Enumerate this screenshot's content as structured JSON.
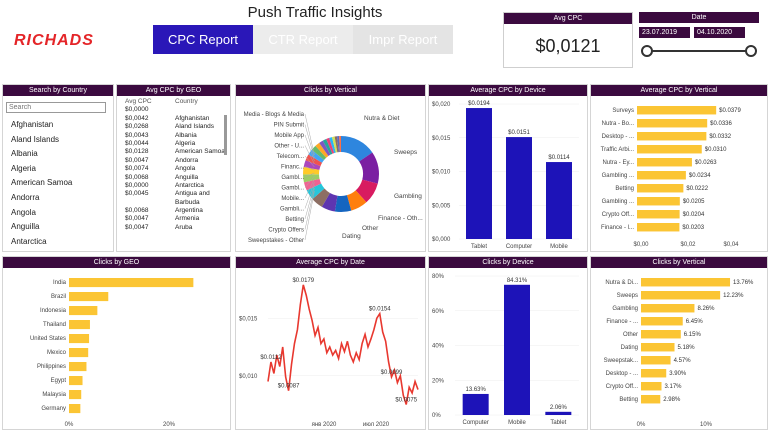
{
  "header": {
    "logo_text": "RICHADS",
    "title": "Push Traffic Insights",
    "tabs": [
      {
        "label": "CPC Report"
      },
      {
        "label": "CTR Report"
      },
      {
        "label": "Impr Report"
      }
    ]
  },
  "avg_cpc_card": {
    "title": "Avg CPC",
    "value": "$0,0121"
  },
  "date_card": {
    "title": "Date",
    "start": "23.07.2019",
    "end": "04.10.2020"
  },
  "country_slicer": {
    "title": "Search by Country",
    "placeholder": "Search",
    "items": [
      "Afghanistan",
      "Aland Islands",
      "Albania",
      "Algeria",
      "American Samoa",
      "Andorra",
      "Angola",
      "Anguilla",
      "Antarctica"
    ]
  },
  "geo_table": {
    "title": "Avg CPC by GEO",
    "col1": "Avg CPC",
    "col2": "Country",
    "rows": [
      [
        "$0,0000",
        ""
      ],
      [
        "$0,0042",
        "Afghanistan"
      ],
      [
        "$0,0268",
        "Aland Islands"
      ],
      [
        "$0,0043",
        "Albania"
      ],
      [
        "$0,0044",
        "Algeria"
      ],
      [
        "$0,0128",
        "American Samoa"
      ],
      [
        "$0,0047",
        "Andorra"
      ],
      [
        "$0,0074",
        "Angola"
      ],
      [
        "$0,0068",
        "Anguilla"
      ],
      [
        "$0,0000",
        "Antarctica"
      ],
      [
        "$0,0045",
        "Antigua and"
      ],
      [
        "",
        "Barbuda"
      ],
      [
        "$0,0068",
        "Argentina"
      ],
      [
        "$0,0047",
        "Armenia"
      ],
      [
        "$0,0047",
        "Aruba"
      ]
    ]
  },
  "donut": {
    "title": "Clicks by Vertical",
    "labels_left": [
      "Media - Blogs & Media",
      "PIN Submit",
      "Mobile App",
      "Other - U...",
      "Telecom...",
      "Financ...",
      "Gambl...",
      "Gambl...",
      "Mobile...",
      "Gambli...",
      "Betting",
      "Crypto Offers",
      "Sweepstakes - Other"
    ],
    "labels_right": [
      "Nutra & Diet",
      "Sweeps",
      "Gambling",
      "Finance - Oth...",
      "Other",
      "Dating"
    ]
  },
  "device_cpc": {
    "title": "Average CPC by Device",
    "y_ticks": [
      "$0,020",
      "$0,015",
      "$0,010",
      "$0,005",
      "$0,000"
    ]
  },
  "vertical_cpc": {
    "title": "Average CPC by Vertical",
    "x_ticks": [
      "$0,00",
      "$0,02",
      "$0,04"
    ]
  },
  "geo_clicks": {
    "title": "Clicks by GEO",
    "x_ticks": [
      "0%",
      "20%"
    ]
  },
  "date_cpc": {
    "title": "Average CPC by Date",
    "y_ticks": [
      "$0,015",
      "$0,010"
    ],
    "x_ticks": [
      "янв 2020",
      "июл 2020"
    ],
    "annotations": [
      "$0.0179",
      "$0.0154",
      "$0.0112",
      "$0.0099",
      "$0.0087",
      "$0.0075"
    ]
  },
  "device_clicks": {
    "title": "Clicks by Device",
    "y_ticks": [
      "80%",
      "60%",
      "40%",
      "20%",
      "0%"
    ]
  },
  "vertical_clicks": {
    "title": "Clicks by Vertical",
    "x_ticks": [
      "0%",
      "10%"
    ]
  },
  "colors": {
    "bar_blue": "#1d13b8",
    "bar_yellow": "#fbc534",
    "header_bg": "#3b0a3f",
    "line_red": "#e8382f",
    "logo_red": "#e42528"
  },
  "chart_data": [
    {
      "type": "bar",
      "title": "Average CPC by Device",
      "categories": [
        "Tablet",
        "Computer",
        "Mobile"
      ],
      "values": [
        0.0194,
        0.0151,
        0.0114
      ],
      "labels": [
        "$0.0194",
        "$0.0151",
        "$0.0114"
      ],
      "ylim": [
        0,
        0.02
      ]
    },
    {
      "type": "bar",
      "orientation": "horizontal",
      "title": "Average CPC by Vertical",
      "categories": [
        "Surveys",
        "Nutra - Bo...",
        "Desktop - ...",
        "Traffic Arbi...",
        "Nutra - Ey...",
        "Gambling ...",
        "Betting",
        "Gambling ...",
        "Crypto Off...",
        "Finance - l..."
      ],
      "values": [
        0.0379,
        0.0336,
        0.0332,
        0.031,
        0.0263,
        0.0234,
        0.0222,
        0.0205,
        0.0204,
        0.0203
      ],
      "labels": [
        "$0.0379",
        "$0.0336",
        "$0.0332",
        "$0.0310",
        "$0.0263",
        "$0.0234",
        "$0.0222",
        "$0.0205",
        "$0.0204",
        "$0.0203"
      ],
      "xlim": [
        0,
        0.045
      ]
    },
    {
      "type": "bar",
      "orientation": "horizontal",
      "title": "Clicks by GEO",
      "categories": [
        "India",
        "Brazil",
        "Indonesia",
        "Thailand",
        "United States",
        "Mexico",
        "Philippines",
        "Egypt",
        "Malaysia",
        "Germany"
      ],
      "values": [
        28.5,
        9.0,
        6.5,
        4.8,
        4.6,
        4.4,
        4.0,
        3.1,
        2.8,
        2.6
      ],
      "xlim": [
        0,
        33
      ]
    },
    {
      "type": "line",
      "title": "Average CPC by Date",
      "x_range": [
        "2019-07",
        "2020-10"
      ],
      "ylim": [
        0.0065,
        0.0185
      ],
      "values": [
        0.0095,
        0.0112,
        0.0102,
        0.0118,
        0.0108,
        0.0125,
        0.0099,
        0.0087,
        0.011,
        0.0128,
        0.014,
        0.0162,
        0.0179,
        0.017,
        0.0158,
        0.0148,
        0.0135,
        0.0142,
        0.0128,
        0.0132,
        0.012,
        0.0125,
        0.0118,
        0.0122,
        0.0115,
        0.0128,
        0.0121,
        0.013,
        0.0118,
        0.0112,
        0.012,
        0.0114,
        0.0128,
        0.0136,
        0.0125,
        0.0132,
        0.014,
        0.015,
        0.0154,
        0.0138,
        0.013,
        0.0112,
        0.0099,
        0.0105,
        0.0094,
        0.01,
        0.0083,
        0.0075,
        0.009,
        0.0085,
        0.0095,
        0.0088
      ]
    },
    {
      "type": "bar",
      "title": "Clicks by Device",
      "categories": [
        "Computer",
        "Mobile",
        "Tablet"
      ],
      "values": [
        13.63,
        84.31,
        2.06
      ],
      "labels": [
        "13.63%",
        "84.31%",
        "2.06%"
      ],
      "ylim": [
        0,
        90
      ]
    },
    {
      "type": "bar",
      "orientation": "horizontal",
      "title": "Clicks by Vertical",
      "categories": [
        "Nutra & Di...",
        "Sweeps",
        "Gambling",
        "Finance - ...",
        "Other",
        "Dating",
        "Sweepstak...",
        "Desktop - ...",
        "Crypto Off...",
        "Betting"
      ],
      "values": [
        13.76,
        12.23,
        8.26,
        6.45,
        6.15,
        5.18,
        4.57,
        3.9,
        3.17,
        2.98
      ],
      "labels": [
        "13.76%",
        "12.23%",
        "8.26%",
        "6.45%",
        "6.15%",
        "5.18%",
        "4.57%",
        "3.90%",
        "3.17%",
        "2.98%"
      ],
      "xlim": [
        0,
        17
      ]
    }
  ]
}
